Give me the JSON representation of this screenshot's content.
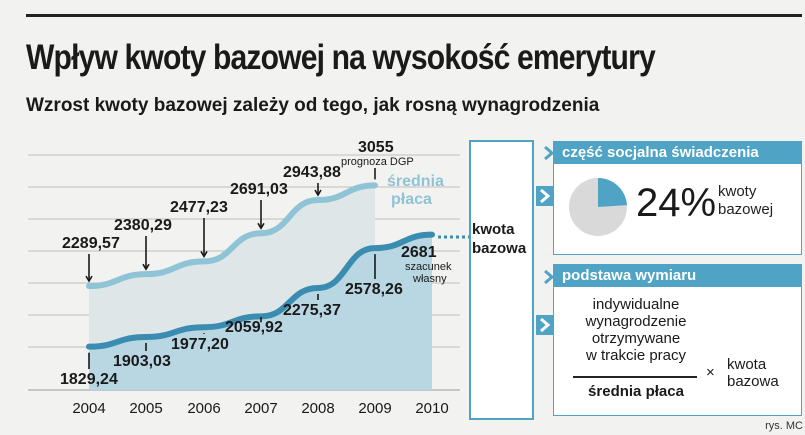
{
  "title": "Wpływ kwoty bazowej na wysokość emerytury",
  "subtitle": "Wzrost kwoty bazowej zależy od tego, jak rosną wynagrodzenia",
  "chart_data": {
    "type": "area",
    "categories": [
      "2004",
      "2005",
      "2006",
      "2007",
      "2008",
      "2009",
      "2010"
    ],
    "ylim": [
      1500,
      3400
    ],
    "series": [
      {
        "name": "średnia płaca",
        "color": "#8fc3d6",
        "values": [
          2289.57,
          2380.29,
          2477.23,
          2691.03,
          2943.88,
          3055,
          null
        ],
        "labels": [
          "2289,57",
          "2380,29",
          "2477,23",
          "2691,03",
          "2943,88",
          "3055",
          ""
        ]
      },
      {
        "name": "kwota bazowa",
        "color": "#3a8db0",
        "values": [
          1829.24,
          1903.03,
          1977.2,
          2059.92,
          2275.37,
          2578.26,
          2681
        ],
        "labels": [
          "1829,24",
          "1903,03",
          "1977,20",
          "2059,92",
          "2275,37",
          "2578,26",
          "2681"
        ]
      }
    ],
    "annotations": {
      "forecast": "prognoza DGP",
      "estimate_line1": "szacunek",
      "estimate_line2": "własny",
      "series1_label_line1": "średnia",
      "series1_label_line2": "płaca"
    }
  },
  "kwota_box": {
    "line1": "kwota",
    "line2": "bazowa"
  },
  "panel_social": {
    "header": "część socjalna świadczenia",
    "percent": "24%",
    "percent_value": 24,
    "label_line1": "kwoty",
    "label_line2": "bazowej",
    "colors": {
      "slice": "#4fa3c4",
      "rest": "#d9d9d9"
    }
  },
  "panel_base": {
    "header": "podstawa wymiaru",
    "numerator": [
      "indywidualne",
      "wynagrodzenie",
      "otrzymywane",
      "w trakcie pracy"
    ],
    "denominator": "średnia płaca",
    "times": "×",
    "right_line1": "kwota",
    "right_line2": "bazowa"
  },
  "source": "rys. MC"
}
